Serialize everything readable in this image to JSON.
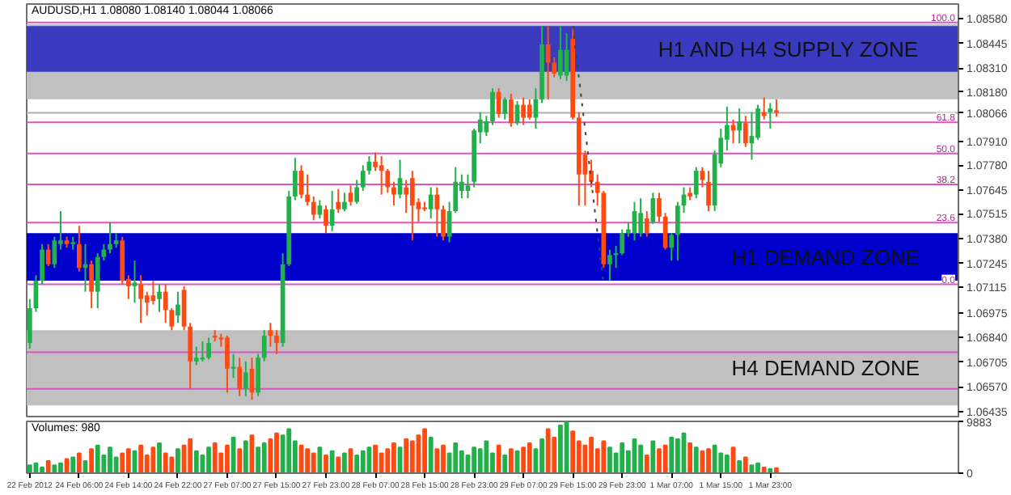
{
  "chart_data": [
    {
      "type": "candlestick",
      "title": "AUDUSD,H1  1.08080 1.08140 1.08044 1.08066",
      "categories": [
        null,
        null,
        null,
        null,
        null,
        null,
        null,
        null,
        null,
        null,
        null,
        null,
        null,
        null,
        null,
        null,
        null,
        null,
        null,
        null,
        null,
        null,
        null,
        null,
        null,
        null,
        null,
        null,
        null,
        null,
        null,
        null,
        null,
        null,
        null,
        null,
        null,
        null,
        null,
        null,
        null,
        null,
        null,
        null,
        null,
        null,
        null,
        null,
        null,
        null,
        null,
        null,
        null,
        null,
        null,
        null,
        null,
        null,
        null,
        null,
        null,
        null,
        null,
        null,
        null,
        null,
        null,
        null,
        null,
        null,
        null,
        null,
        null,
        null,
        null,
        null,
        null,
        null,
        null,
        null,
        null,
        null,
        null,
        null,
        null,
        null,
        null,
        null,
        null,
        null,
        null,
        null,
        null,
        null,
        null,
        null,
        null,
        null,
        null,
        null,
        null,
        null,
        null,
        null,
        null,
        null,
        null,
        null,
        null,
        null,
        null,
        null,
        null,
        null,
        null,
        null,
        null,
        null,
        null,
        null,
        null,
        null,
        null,
        null,
        null,
        null,
        null,
        null,
        null,
        null,
        null,
        null,
        null,
        null,
        null,
        null,
        null,
        null,
        null,
        null,
        null,
        null,
        null,
        null,
        null,
        null,
        null,
        null,
        null,
        null,
        null
      ],
      "ohlc": [
        [
          1.0681,
          1.0705,
          1.0678,
          1.07
        ],
        [
          1.07,
          1.0718,
          1.0698,
          1.0715
        ],
        [
          1.0715,
          1.0735,
          1.0713,
          1.0732
        ],
        [
          1.0732,
          1.0735,
          1.0723,
          1.0724
        ],
        [
          1.0724,
          1.0739,
          1.0722,
          1.0737
        ],
        [
          1.0735,
          1.0753,
          1.0732,
          1.0737
        ],
        [
          1.0737,
          1.0739,
          1.0733,
          1.0735
        ],
        [
          1.0735,
          1.0739,
          1.0732,
          1.0736
        ],
        [
          1.0735,
          1.0745,
          1.072,
          1.0722
        ],
        [
          1.0722,
          1.0735,
          1.0709,
          1.0724
        ],
        [
          1.0724,
          1.0726,
          1.07,
          1.0709
        ],
        [
          1.0709,
          1.073,
          1.07,
          1.0728
        ],
        [
          1.0728,
          1.0735,
          1.0726,
          1.0732
        ],
        [
          1.0732,
          1.0747,
          1.073,
          1.0735
        ],
        [
          1.0735,
          1.0741,
          1.0733,
          1.0737
        ],
        [
          1.0737,
          1.0739,
          1.0713,
          1.0715
        ],
        [
          1.0716,
          1.0718,
          1.0705,
          1.0712
        ],
        [
          1.0712,
          1.0726,
          1.0703,
          1.0714
        ],
        [
          1.0713,
          1.0718,
          1.0692,
          1.0705
        ],
        [
          1.0707,
          1.0709,
          1.0696,
          1.0703
        ],
        [
          1.0707,
          1.0715,
          1.0702,
          1.0704
        ],
        [
          1.0705,
          1.0713,
          1.0698,
          1.0709
        ],
        [
          1.0709,
          1.0713,
          1.0692,
          1.0699
        ],
        [
          1.0699,
          1.07,
          1.0688,
          1.069
        ],
        [
          1.0696,
          1.0709,
          1.0692,
          1.0702
        ],
        [
          1.071,
          1.0712,
          1.0688,
          1.069
        ],
        [
          1.069,
          1.0692,
          1.0656,
          1.0671
        ],
        [
          1.0671,
          1.0679,
          1.0669,
          1.0673
        ],
        [
          1.0672,
          1.0682,
          1.0671,
          1.0673
        ],
        [
          1.0673,
          1.0684,
          1.0672,
          1.0681
        ],
        [
          1.0685,
          1.0688,
          1.0682,
          1.0684
        ],
        [
          1.0684,
          1.0686,
          1.0679,
          1.0683
        ],
        [
          1.0684,
          1.0685,
          1.0654,
          1.0667
        ],
        [
          1.0667,
          1.0675,
          1.0662,
          1.0668
        ],
        [
          1.0668,
          1.0673,
          1.0652,
          1.0656
        ],
        [
          1.0656,
          1.0671,
          1.0652,
          1.0665
        ],
        [
          1.0667,
          1.0673,
          1.065,
          1.0654
        ],
        [
          1.0654,
          1.0675,
          1.0652,
          1.0673
        ],
        [
          1.0673,
          1.0688,
          1.0671,
          1.0685
        ],
        [
          1.0688,
          1.0692,
          1.0679,
          1.0685
        ],
        [
          1.0685,
          1.0688,
          1.0675,
          1.0681
        ],
        [
          1.0681,
          1.073,
          1.0679,
          1.0724
        ],
        [
          1.0724,
          1.0764,
          1.0723,
          1.0761
        ],
        [
          1.0761,
          1.0782,
          1.0759,
          1.0775
        ],
        [
          1.0775,
          1.0778,
          1.076,
          1.0762
        ],
        [
          1.0762,
          1.0773,
          1.0756,
          1.0758
        ],
        [
          1.0758,
          1.0761,
          1.0748,
          1.0751
        ],
        [
          1.0751,
          1.0759,
          1.0749,
          1.0756
        ],
        [
          1.0754,
          1.0756,
          1.0741,
          1.0745
        ],
        [
          1.0745,
          1.0764,
          1.0742,
          1.0754
        ],
        [
          1.0758,
          1.0765,
          1.0752,
          1.0754
        ],
        [
          1.0754,
          1.0763,
          1.0753,
          1.0758
        ],
        [
          1.0763,
          1.0767,
          1.0756,
          1.0758
        ],
        [
          1.0758,
          1.077,
          1.0757,
          1.0766
        ],
        [
          1.0766,
          1.0778,
          1.0764,
          1.0775
        ],
        [
          1.0775,
          1.0783,
          1.0773,
          1.078
        ],
        [
          1.078,
          1.0785,
          1.0775,
          1.0777
        ],
        [
          1.0778,
          1.0783,
          1.0762,
          1.0775
        ],
        [
          1.0775,
          1.0776,
          1.0763,
          1.0766
        ],
        [
          1.0766,
          1.0769,
          1.0756,
          1.0762
        ],
        [
          1.0762,
          1.0781,
          1.076,
          1.0771
        ],
        [
          1.0766,
          1.077,
          1.0752,
          1.0762
        ],
        [
          1.0771,
          1.0775,
          1.0737,
          1.0756
        ],
        [
          1.0758,
          1.076,
          1.0747,
          1.0754
        ],
        [
          1.0755,
          1.0758,
          1.0753,
          1.0754
        ],
        [
          1.0754,
          1.0766,
          1.0749,
          1.0762
        ],
        [
          1.0762,
          1.0766,
          1.0739,
          1.0754
        ],
        [
          1.0754,
          1.0756,
          1.0737,
          1.0739
        ],
        [
          1.0739,
          1.0758,
          1.0736,
          1.0753
        ],
        [
          1.0753,
          1.0777,
          1.0752,
          1.0769
        ],
        [
          1.0764,
          1.0773,
          1.076,
          1.0769
        ],
        [
          1.0764,
          1.0773,
          1.076,
          1.0767
        ],
        [
          1.0769,
          1.0798,
          1.0766,
          1.0797
        ],
        [
          1.0796,
          1.0807,
          1.079,
          1.0803
        ],
        [
          1.0796,
          1.0805,
          1.0794,
          1.0802
        ],
        [
          1.0802,
          1.082,
          1.08,
          1.0818
        ],
        [
          1.0818,
          1.082,
          1.0804,
          1.0806
        ],
        [
          1.0806,
          1.0815,
          1.0803,
          1.0814
        ],
        [
          1.0814,
          1.0817,
          1.0799,
          1.0801
        ],
        [
          1.0801,
          1.0813,
          1.08,
          1.0811
        ],
        [
          1.0811,
          1.0815,
          1.08,
          1.0804
        ],
        [
          1.0811,
          1.0814,
          1.0803,
          1.0804
        ],
        [
          1.0804,
          1.082,
          1.0798,
          1.0814
        ],
        [
          1.0814,
          1.0854,
          1.0812,
          1.0844
        ],
        [
          1.0844,
          1.0854,
          1.0814,
          1.0834
        ],
        [
          1.0834,
          1.0837,
          1.0826,
          1.0828
        ],
        [
          1.0827,
          1.0854,
          1.0825,
          1.0841
        ],
        [
          1.0827,
          1.085,
          1.0824,
          1.0841
        ],
        [
          1.0847,
          1.0854,
          1.0803,
          1.0804
        ],
        [
          1.0804,
          1.0807,
          1.0756,
          1.0773
        ],
        [
          1.0784,
          1.0786,
          1.0756,
          1.0773
        ],
        [
          1.0775,
          1.0781,
          1.0766,
          1.0769
        ],
        [
          1.0769,
          1.0773,
          1.0756,
          1.0763
        ],
        [
          1.0763,
          1.0764,
          1.0722,
          1.0724
        ],
        [
          1.0724,
          1.0732,
          1.0715,
          1.0729
        ],
        [
          1.0729,
          1.0734,
          1.0722,
          1.073
        ],
        [
          1.073,
          1.0743,
          1.0729,
          1.0741
        ],
        [
          1.0741,
          1.0747,
          1.0739,
          1.0743
        ],
        [
          1.0741,
          1.0758,
          1.0737,
          1.0753
        ],
        [
          1.0741,
          1.076,
          1.0739,
          1.0752
        ],
        [
          1.0749,
          1.0753,
          1.0739,
          1.0741
        ],
        [
          1.0747,
          1.0763,
          1.0746,
          1.076
        ],
        [
          1.076,
          1.0763,
          1.0747,
          1.075
        ],
        [
          1.075,
          1.0752,
          1.0732,
          1.0733
        ],
        [
          1.0733,
          1.0741,
          1.0726,
          1.074
        ],
        [
          1.074,
          1.0758,
          1.0726,
          1.0756
        ],
        [
          1.0756,
          1.0766,
          1.0752,
          1.0762
        ],
        [
          1.0763,
          1.0766,
          1.0759,
          1.0761
        ],
        [
          1.0762,
          1.0777,
          1.076,
          1.0775
        ],
        [
          1.0775,
          1.0777,
          1.0766,
          1.077
        ],
        [
          1.0769,
          1.0775,
          1.0753,
          1.0756
        ],
        [
          1.0756,
          1.0786,
          1.0753,
          1.0784
        ],
        [
          1.0779,
          1.0798,
          1.0777,
          1.0793
        ],
        [
          1.0792,
          1.081,
          1.0786,
          1.08
        ],
        [
          1.08,
          1.0803,
          1.079,
          1.0797
        ],
        [
          1.0797,
          1.0809,
          1.079,
          1.0802
        ],
        [
          1.0801,
          1.0805,
          1.0788,
          1.079
        ],
        [
          1.079,
          1.0807,
          1.0781,
          1.0794
        ],
        [
          1.0793,
          1.0811,
          1.0792,
          1.0809
        ],
        [
          1.0807,
          1.0815,
          1.0803,
          1.0805
        ],
        [
          1.0807,
          1.0812,
          1.0798,
          1.0809
        ],
        [
          1.0808,
          1.0814,
          1.08044,
          1.08066
        ],
        null,
        null,
        null,
        null,
        null,
        null,
        null,
        null,
        null,
        null,
        null,
        null,
        null,
        null,
        null,
        null,
        null,
        null,
        null,
        null,
        null,
        null,
        null,
        null,
        null,
        null,
        null,
        null,
        null
      ],
      "colors": [
        "#22b04a",
        "#22b04a",
        "#22b04a",
        "#ff4a12",
        "#22b04a",
        "#22b04a",
        "#ff4a12",
        "#22b04a",
        "#ff4a12",
        "#22b04a",
        "#ff4a12",
        "#22b04a",
        "#22b04a",
        "#22b04a",
        "#22b04a",
        "#ff4a12",
        "#ff4a12",
        "#22b04a",
        "#ff4a12",
        "#ff4a12",
        "#ff4a12",
        "#22b04a",
        "#ff4a12",
        "#ff4a12",
        "#22b04a",
        "#ff4a12",
        "#ff4a12",
        "#22b04a",
        "#22b04a",
        "#22b04a",
        "#ff4a12",
        "#ff4a12",
        "#ff4a12",
        "#22b04a",
        "#ff4a12",
        "#22b04a",
        "#ff4a12",
        "#22b04a",
        "#22b04a",
        "#ff4a12",
        "#ff4a12",
        "#22b04a",
        "#22b04a",
        "#22b04a",
        "#ff4a12",
        "#ff4a12",
        "#ff4a12",
        "#22b04a",
        "#ff4a12",
        "#22b04a",
        "#ff4a12",
        "#22b04a",
        "#ff4a12",
        "#22b04a",
        "#22b04a",
        "#22b04a",
        "#ff4a12",
        "#ff4a12",
        "#ff4a12",
        "#ff4a12",
        "#22b04a",
        "#ff4a12",
        "#ff4a12",
        "#ff4a12",
        "#ff4a12",
        "#22b04a",
        "#ff4a12",
        "#ff4a12",
        "#22b04a",
        "#22b04a",
        "#22b04a",
        "#22b04a",
        "#22b04a",
        "#22b04a",
        "#22b04a",
        "#22b04a",
        "#ff4a12",
        "#22b04a",
        "#ff4a12",
        "#22b04a",
        "#ff4a12",
        "#ff4a12",
        "#22b04a",
        "#22b04a",
        "#ff4a12",
        "#ff4a12",
        "#22b04a",
        "#22b04a",
        "#ff4a12",
        "#ff4a12",
        "#ff4a12",
        "#ff4a12",
        "#ff4a12",
        "#ff4a12",
        "#22b04a",
        "#22b04a",
        "#22b04a",
        "#22b04a",
        "#22b04a",
        "#22b04a",
        "#ff4a12",
        "#22b04a",
        "#ff4a12",
        "#ff4a12",
        "#22b04a",
        "#22b04a",
        "#22b04a",
        "#ff4a12",
        "#22b04a",
        "#ff4a12",
        "#ff4a12",
        "#22b04a",
        "#22b04a",
        "#22b04a",
        "#ff4a12",
        "#22b04a",
        "#ff4a12",
        "#22b04a",
        "#22b04a",
        "#ff4a12",
        "#22b04a",
        "#ff4a12",
        null,
        null,
        null,
        null,
        null,
        null,
        null,
        null,
        null,
        null,
        null,
        null,
        null,
        null,
        null,
        null,
        null,
        null,
        null,
        null,
        null,
        null,
        null,
        null,
        null,
        null,
        null,
        null,
        null
      ],
      "series": [
        {
          "type": "line",
          "values": [
            null,
            null,
            null,
            null,
            null,
            null,
            null,
            null,
            null,
            null,
            null,
            null,
            null,
            null,
            null,
            null,
            null,
            null,
            null,
            null,
            null,
            null,
            null,
            null,
            null,
            null,
            null,
            null,
            null,
            null,
            null,
            null,
            null,
            null,
            null,
            null,
            null,
            null,
            null,
            null,
            null,
            null,
            null,
            null,
            null,
            null,
            null,
            null,
            null,
            null,
            null,
            null,
            null,
            null,
            null,
            null,
            null,
            null,
            null,
            null,
            null,
            null,
            null,
            null,
            null,
            null,
            null,
            null,
            null,
            null,
            null,
            null,
            null,
            null,
            null,
            null,
            null,
            null,
            null,
            null,
            null,
            null,
            null,
            null,
            null,
            null,
            null,
            null,
            1.0854,
            null,
            null,
            null,
            null,
            1.0713,
            null,
            null,
            null,
            null,
            null,
            null,
            null,
            null,
            null,
            null,
            null,
            null,
            null,
            null,
            null,
            null,
            null,
            null,
            null,
            null,
            null,
            null,
            null,
            null,
            null,
            null,
            null,
            null,
            null,
            null,
            null,
            null,
            null,
            null,
            null,
            null,
            null,
            null,
            null,
            null,
            null,
            null,
            null,
            null,
            null,
            null,
            null,
            null,
            null,
            null,
            null,
            null,
            null,
            null,
            null,
            null,
            null
          ],
          "color": "#404040",
          "line_style": "dotted"
        }
      ],
      "ylim": [
        1.064,
        1.0866
      ],
      "yticks": [
        {
          "value": 1.0858,
          "label": "1.08580"
        },
        {
          "value": 1.08445,
          "label": "1.08445"
        },
        {
          "value": 1.0831,
          "label": "1.08310"
        },
        {
          "value": 1.0818,
          "label": "1.08180"
        },
        {
          "value": 1.0791,
          "label": "1.07910"
        },
        {
          "value": 1.0778,
          "label": "1.07780"
        },
        {
          "value": 1.07645,
          "label": "1.07645"
        },
        {
          "value": 1.07515,
          "label": "1.07515"
        },
        {
          "value": 1.0738,
          "label": "1.07380"
        },
        {
          "value": 1.07245,
          "label": "1.07245"
        },
        {
          "value": 1.07115,
          "label": "1.07115"
        },
        {
          "value": 1.06975,
          "label": "1.06975"
        },
        {
          "value": 1.0684,
          "label": "1.06840"
        },
        {
          "value": 1.06705,
          "label": "1.06705"
        },
        {
          "value": 1.0657,
          "label": "1.06570"
        },
        {
          "value": 1.06435,
          "label": "1.06435"
        }
      ],
      "bands": [
        {
          "axis": "y",
          "from": 1.0647,
          "to": 1.0688,
          "label": "H4 DEMAND ZONE",
          "color": "#c0c0c0"
        },
        {
          "axis": "y",
          "from": 1.0814,
          "to": 1.0855,
          "label": null,
          "color": "#c0c0c0"
        },
        {
          "axis": "y",
          "from": 1.0829,
          "to": 1.0854,
          "label": "H1 AND H4 SUPPLY ZONE",
          "color": "#3a3abf"
        },
        {
          "axis": "y",
          "from": 1.0715,
          "to": 1.0741,
          "label": "H1 DEMAND ZONE",
          "color": "#0000cc"
        }
      ],
      "ref_lines": [
        {
          "axis": "y",
          "value": 1.08066,
          "label": "1.08066",
          "color": "#b0b0b0"
        },
        {
          "axis": "y",
          "value": 1.0856,
          "label": null,
          "color": "#e050c8"
        },
        {
          "axis": "y",
          "value": 1.08014,
          "label": null,
          "color": "#e050c8"
        },
        {
          "axis": "y",
          "value": 1.07845,
          "label": null,
          "color": "#e050c8"
        },
        {
          "axis": "y",
          "value": 1.07676,
          "label": null,
          "color": "#e050c8"
        },
        {
          "axis": "y",
          "value": 1.07467,
          "label": null,
          "color": "#e050c8"
        },
        {
          "axis": "y",
          "value": 1.0713,
          "label": null,
          "color": "#e050c8"
        },
        {
          "axis": "y",
          "value": 1.0676,
          "label": null,
          "color": "#e050c8"
        },
        {
          "axis": "y",
          "value": 1.0656,
          "label": null,
          "color": "#e050c8"
        }
      ],
      "annotations": [
        {
          "text": "100.0",
          "y": 1.0856
        },
        {
          "text": "61.8",
          "y": 1.08014
        },
        {
          "text": "50.0",
          "y": 1.07845
        },
        {
          "text": "38.2",
          "y": 1.07676
        },
        {
          "text": "23.6",
          "y": 1.07467
        },
        {
          "text": "0.0",
          "y": 1.0713
        }
      ],
      "tick_labels": "y",
      "grid": false
    },
    {
      "type": "bar",
      "title": "Volumes: 980",
      "categories": [
        "22 Feb 2012",
        null,
        null,
        null,
        null,
        null,
        null,
        null,
        "24 Feb 06:00",
        null,
        null,
        null,
        null,
        null,
        null,
        null,
        "24 Feb 14:00",
        null,
        null,
        null,
        null,
        null,
        null,
        null,
        "24 Feb 22:00",
        null,
        null,
        null,
        null,
        null,
        null,
        null,
        "27 Feb 07:00",
        null,
        null,
        null,
        null,
        null,
        null,
        null,
        "27 Feb 15:00",
        null,
        null,
        null,
        null,
        null,
        null,
        null,
        "27 Feb 23:00",
        null,
        null,
        null,
        null,
        null,
        null,
        null,
        "28 Feb 07:00",
        null,
        null,
        null,
        null,
        null,
        null,
        null,
        "28 Feb 15:00",
        null,
        null,
        null,
        null,
        null,
        null,
        null,
        "28 Feb 23:00",
        null,
        null,
        null,
        null,
        null,
        null,
        null,
        "29 Feb 07:00",
        null,
        null,
        null,
        null,
        null,
        null,
        null,
        "29 Feb 15:00",
        null,
        null,
        null,
        null,
        null,
        null,
        null,
        "29 Feb 23:00",
        null,
        null,
        null,
        null,
        null,
        null,
        null,
        "1 Mar 07:00",
        null,
        null,
        null,
        null,
        null,
        null,
        null,
        "1 Mar 15:00",
        null,
        null,
        null,
        null,
        null,
        null,
        null,
        "1 Mar 23:00",
        null,
        null,
        null,
        null,
        null,
        null,
        null,
        null,
        null,
        null,
        null,
        null,
        null,
        null,
        null,
        null,
        null,
        null,
        null,
        null,
        null,
        null,
        null,
        null,
        null,
        null,
        null,
        null,
        null,
        null
      ],
      "values": [
        1500,
        1900,
        1100,
        2300,
        1500,
        1900,
        2700,
        3000,
        3800,
        2300,
        4600,
        5300,
        3400,
        4900,
        3000,
        3800,
        4600,
        4200,
        5300,
        3400,
        4900,
        5700,
        3800,
        3000,
        4600,
        5300,
        6500,
        4200,
        3400,
        4900,
        5700,
        3800,
        5300,
        6800,
        4600,
        6100,
        7200,
        4900,
        5700,
        6500,
        7600,
        7200,
        8400,
        6100,
        5300,
        4600,
        3800,
        4900,
        3400,
        4200,
        3000,
        3800,
        4600,
        3400,
        4200,
        4900,
        5300,
        3800,
        4600,
        5700,
        4900,
        6500,
        6100,
        7200,
        8400,
        6800,
        4600,
        5300,
        3800,
        5700,
        4200,
        3400,
        4900,
        4600,
        6100,
        3800,
        5300,
        3400,
        4600,
        4200,
        4900,
        5700,
        4600,
        6500,
        8400,
        6800,
        9100,
        9800,
        8000,
        6100,
        5300,
        6800,
        4600,
        6100,
        4900,
        3800,
        5700,
        4200,
        6500,
        5300,
        3400,
        6100,
        4600,
        5300,
        6800,
        6500,
        7600,
        5700,
        4900,
        4200,
        4600,
        5300,
        3800,
        3400,
        4900,
        2300,
        3000,
        1500,
        1900,
        1100,
        800,
        980,
        null,
        null,
        null,
        null,
        null,
        null,
        null,
        null,
        null,
        null,
        null,
        null,
        null,
        null,
        null,
        null,
        null,
        null,
        null,
        null,
        null,
        null,
        null,
        null,
        null,
        null,
        null,
        null,
        null
      ],
      "colors": [
        "#22b04a",
        "#22b04a",
        "#22b04a",
        "#ff4a12",
        "#22b04a",
        "#22b04a",
        "#ff4a12",
        "#22b04a",
        "#ff4a12",
        "#22b04a",
        "#ff4a12",
        "#22b04a",
        "#22b04a",
        "#22b04a",
        "#22b04a",
        "#ff4a12",
        "#ff4a12",
        "#22b04a",
        "#ff4a12",
        "#ff4a12",
        "#ff4a12",
        "#22b04a",
        "#ff4a12",
        "#ff4a12",
        "#22b04a",
        "#ff4a12",
        "#ff4a12",
        "#22b04a",
        "#22b04a",
        "#22b04a",
        "#ff4a12",
        "#ff4a12",
        "#ff4a12",
        "#22b04a",
        "#ff4a12",
        "#22b04a",
        "#ff4a12",
        "#22b04a",
        "#22b04a",
        "#ff4a12",
        "#ff4a12",
        "#22b04a",
        "#22b04a",
        "#22b04a",
        "#ff4a12",
        "#ff4a12",
        "#ff4a12",
        "#22b04a",
        "#ff4a12",
        "#22b04a",
        "#ff4a12",
        "#22b04a",
        "#ff4a12",
        "#22b04a",
        "#22b04a",
        "#22b04a",
        "#ff4a12",
        "#ff4a12",
        "#ff4a12",
        "#ff4a12",
        "#22b04a",
        "#ff4a12",
        "#ff4a12",
        "#ff4a12",
        "#ff4a12",
        "#22b04a",
        "#ff4a12",
        "#ff4a12",
        "#22b04a",
        "#22b04a",
        "#22b04a",
        "#22b04a",
        "#22b04a",
        "#22b04a",
        "#22b04a",
        "#22b04a",
        "#ff4a12",
        "#22b04a",
        "#ff4a12",
        "#22b04a",
        "#ff4a12",
        "#ff4a12",
        "#22b04a",
        "#22b04a",
        "#ff4a12",
        "#ff4a12",
        "#22b04a",
        "#22b04a",
        "#ff4a12",
        "#ff4a12",
        "#ff4a12",
        "#ff4a12",
        "#ff4a12",
        "#ff4a12",
        "#22b04a",
        "#22b04a",
        "#22b04a",
        "#22b04a",
        "#22b04a",
        "#22b04a",
        "#ff4a12",
        "#22b04a",
        "#ff4a12",
        "#ff4a12",
        "#22b04a",
        "#22b04a",
        "#22b04a",
        "#ff4a12",
        "#22b04a",
        "#ff4a12",
        "#ff4a12",
        "#22b04a",
        "#22b04a",
        "#22b04a",
        "#ff4a12",
        "#22b04a",
        "#ff4a12",
        "#22b04a",
        "#22b04a",
        "#ff4a12",
        "#22b04a",
        "#ff4a12",
        null,
        null,
        null,
        null,
        null,
        null,
        null,
        null,
        null,
        null,
        null,
        null,
        null,
        null,
        null,
        null,
        null,
        null,
        null,
        null,
        null,
        null,
        null,
        null,
        null,
        null,
        null,
        null,
        null
      ],
      "ylim": [
        0,
        9883
      ],
      "yticks": [
        0,
        9883
      ],
      "grid": false
    }
  ]
}
